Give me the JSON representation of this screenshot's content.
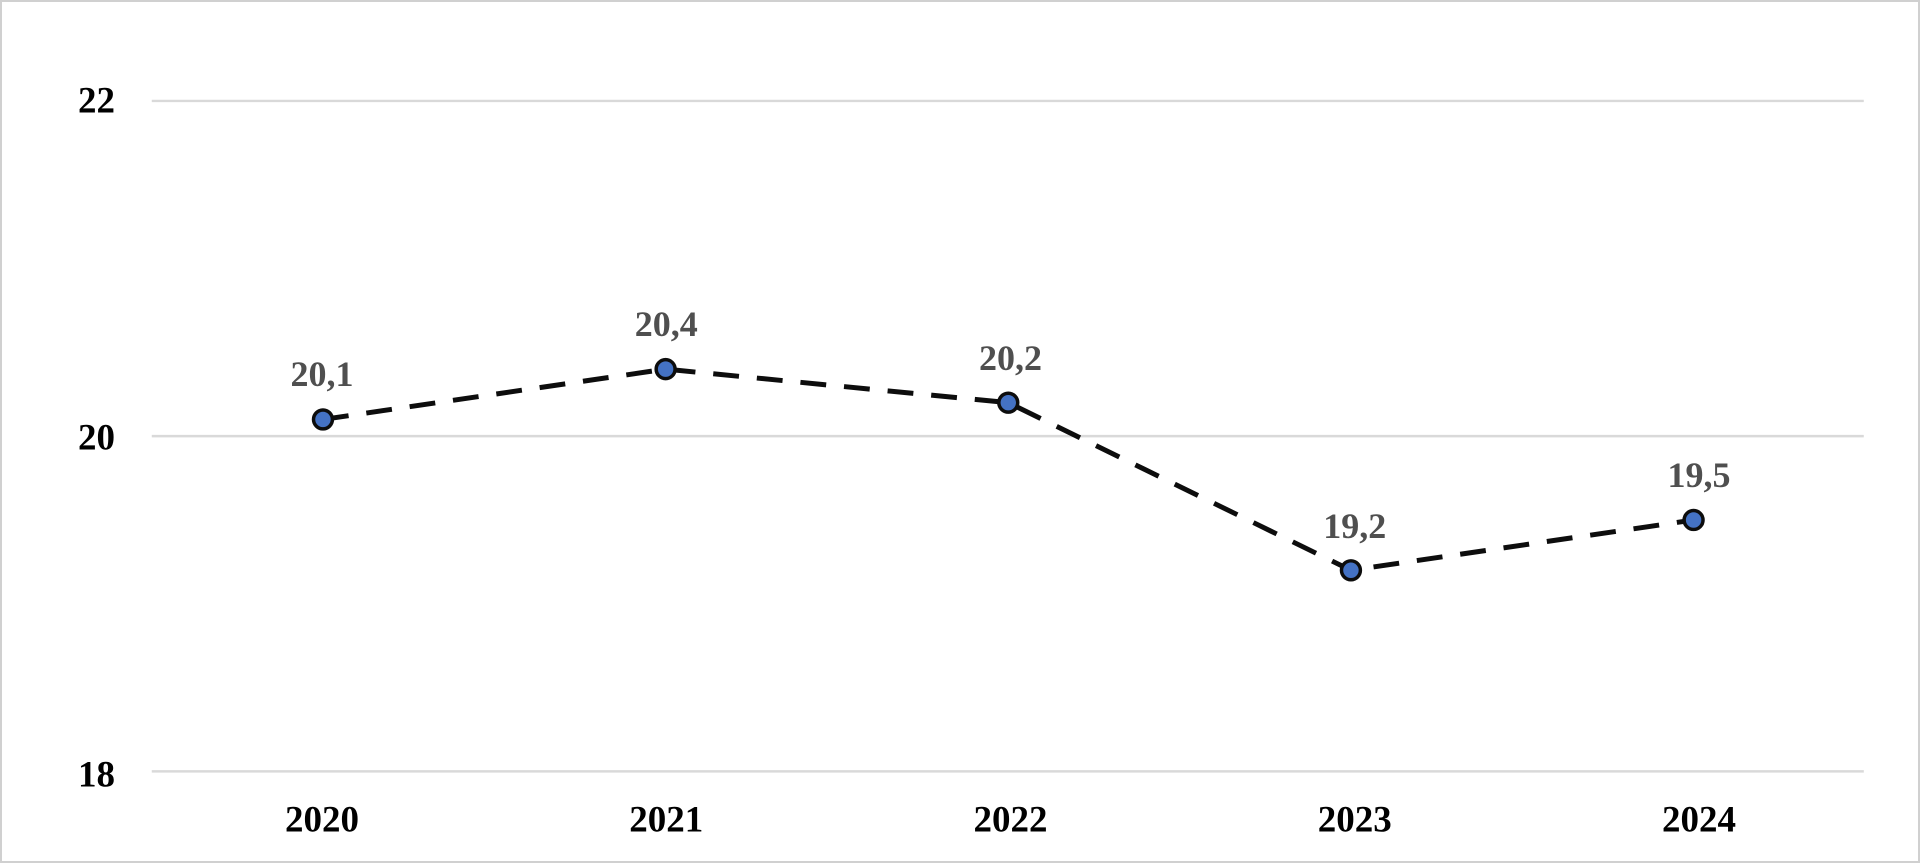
{
  "chart_data": {
    "type": "line",
    "categories": [
      "2020",
      "2021",
      "2022",
      "2023",
      "2024"
    ],
    "values": [
      20.1,
      20.4,
      20.2,
      19.2,
      19.5
    ],
    "data_labels": [
      "20,1",
      "20,4",
      "20,2",
      "19,2",
      "19,5"
    ],
    "title": "",
    "xlabel": "",
    "ylabel": "",
    "y_axis": {
      "range": [
        18,
        22
      ],
      "ticks": [
        22,
        20,
        18
      ],
      "tick_labels": [
        "22",
        "20",
        "18"
      ],
      "grid": true
    },
    "legend": "none",
    "line_style": "dashed",
    "colors": {
      "line": "#0d0d0d",
      "marker_fill": "#4472c4",
      "marker_stroke": "#0d0d0d",
      "gridline": "#d9d9d9",
      "data_label": "#4f4f4f",
      "axis_label": "#000000",
      "background": "#ffffff",
      "frame_border": "#d0d0d0"
    }
  }
}
